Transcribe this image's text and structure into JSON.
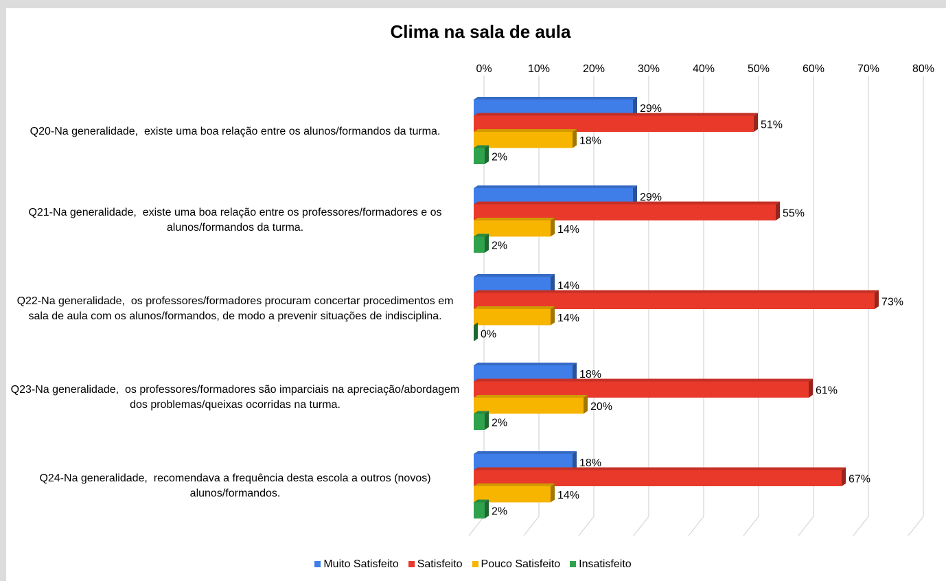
{
  "chart_data": {
    "type": "bar",
    "orientation": "horizontal",
    "title": "Clima na sala de aula",
    "categories": [
      "Q20-Na generalidade,  existe uma boa relação entre os alunos/formandos da turma.",
      "Q21-Na generalidade,  existe uma boa relação entre os professores/formadores e os alunos/formandos da turma.",
      "Q22-Na generalidade,  os professores/formadores procuram concertar procedimentos em sala de aula com os alunos/formandos, de modo a prevenir situações de indisciplina.",
      "Q23-Na generalidade,  os professores/formadores são imparciais na apreciação/abordagem dos problemas/queixas ocorridas na turma.",
      "Q24-Na generalidade,  recomendava a frequência desta escola a outros (novos) alunos/formandos."
    ],
    "series": [
      {
        "name": "Muito Satisfeito",
        "color": "#3f7ee8",
        "values": [
          29,
          29,
          14,
          18,
          18
        ],
        "value_labels": [
          "29%",
          "29%",
          "14%",
          "18%",
          "18%"
        ]
      },
      {
        "name": "Satisfeito",
        "color": "#e8392b",
        "values": [
          51,
          55,
          73,
          61,
          67
        ],
        "value_labels": [
          "51%",
          "55%",
          "73%",
          "61%",
          "67%"
        ]
      },
      {
        "name": "Pouco Satisfeito",
        "color": "#f7b500",
        "values": [
          18,
          14,
          14,
          20,
          14
        ],
        "value_labels": [
          "18%",
          "14%",
          "14%",
          "20%",
          "14%"
        ]
      },
      {
        "name": "Insatisfeito",
        "color": "#2fa24c",
        "values": [
          2,
          2,
          0,
          2,
          2
        ],
        "value_labels": [
          "2%",
          "2%",
          "0%",
          "2%",
          "2%"
        ]
      }
    ],
    "xlim": [
      0,
      80
    ],
    "xticks": [
      {
        "value": 0,
        "label": "0%"
      },
      {
        "value": 10,
        "label": "10%"
      },
      {
        "value": 20,
        "label": "20%"
      },
      {
        "value": 30,
        "label": "30%"
      },
      {
        "value": 40,
        "label": "40%"
      },
      {
        "value": 50,
        "label": "50%"
      },
      {
        "value": 60,
        "label": "60%"
      },
      {
        "value": 70,
        "label": "70%"
      },
      {
        "value": 80,
        "label": "80%"
      }
    ],
    "grid": true,
    "legend": "bottom"
  }
}
